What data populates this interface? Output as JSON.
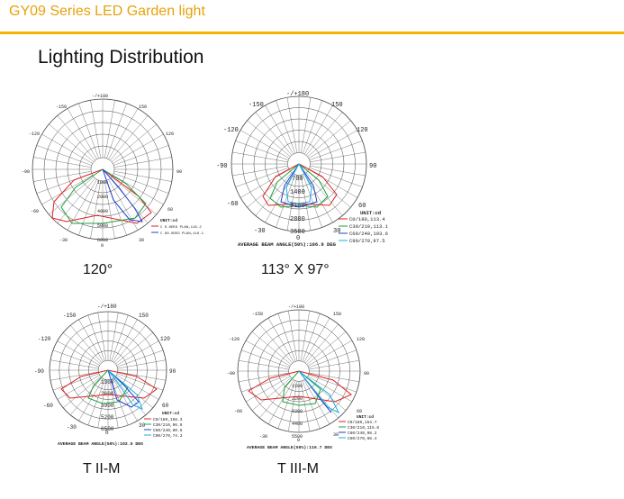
{
  "header": {
    "title": "GY09 Series LED Garden light",
    "accent": "#f5b400",
    "title_color": "#e8a20c"
  },
  "section": {
    "title": "Lighting Distribution"
  },
  "diagrams": [
    {
      "caption": "120°",
      "angle_labels": [
        "-/+180",
        "-150",
        "150",
        "-120",
        "120",
        "-90",
        "90",
        "-60",
        "60",
        "-30",
        "30",
        "0"
      ],
      "radial_labels": [
        "1000",
        "2000",
        "4000",
        "5000",
        "6000"
      ],
      "legend": [
        "UNIT:cd",
        "C 0.0DEG PLAN,116.2",
        "C 90.0DEG PLAN,116.1"
      ],
      "beam_text": ""
    },
    {
      "caption": "113° X 97°",
      "angle_labels": [
        "-/+180",
        "-150",
        "150",
        "-120",
        "120",
        "-90",
        "90",
        "-60",
        "60",
        "-30",
        "30",
        "0"
      ],
      "radial_labels": [
        "700",
        "1400",
        "2100",
        "2800",
        "3500"
      ],
      "legend": [
        "UNIT:cd",
        "C0/180,113.4",
        "C30/210,113.1",
        "C60/240,103.6",
        "C90/270,97.5"
      ],
      "beam_text": "AVERAGE BEAM ANGLE(50%):106.9 DEG"
    },
    {
      "caption": "T II-M",
      "angle_labels": [
        "-/+180",
        "-150",
        "150",
        "-120",
        "120",
        "-90",
        "90",
        "-60",
        "60",
        "-30",
        "30",
        "0"
      ],
      "radial_labels": [
        "1300",
        "2600",
        "3900",
        "5200",
        "6500"
      ],
      "legend": [
        "UNIT:cd",
        "C0/180,158.3",
        "C30/210,96.9",
        "C60/240,80.6",
        "C90/270,74.3"
      ],
      "beam_text": "AVERAGE BEAM ANGLE(50%):102.5 DEG"
    },
    {
      "caption": "T III-M",
      "angle_labels": [
        "-/+180",
        "-150",
        "150",
        "-120",
        "120",
        "-90",
        "90",
        "-60",
        "60",
        "-30",
        "30",
        "0"
      ],
      "radial_labels": [
        "1100",
        "2200",
        "3300",
        "4400",
        "5500"
      ],
      "legend": [
        "UNIT:cd",
        "C0/180,154.7",
        "C30/210,115.6",
        "C60/240,98.2",
        "C90/270,98.4"
      ],
      "beam_text": "AVERAGE BEAM ANGLE(50%):116.7 DEG"
    }
  ],
  "series_colors": [
    "#e02020",
    "#20a040",
    "#2040d0",
    "#19b0e0"
  ]
}
